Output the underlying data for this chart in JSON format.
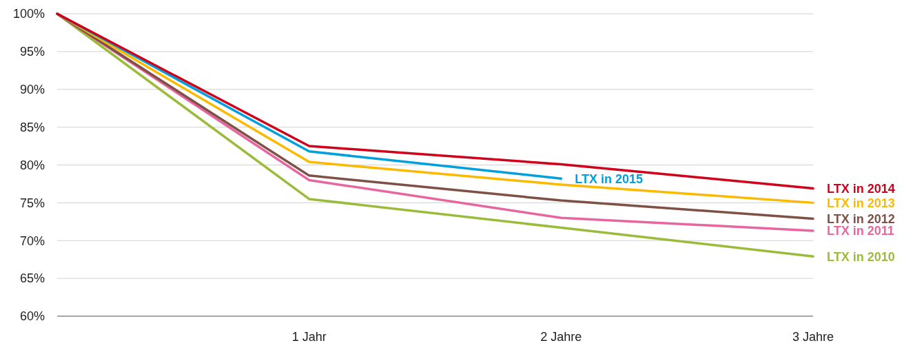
{
  "chart_data": {
    "type": "line",
    "categories": [
      null,
      "1 Jahr",
      "2 Jahre",
      "3 Jahre"
    ],
    "ylim": [
      60,
      100
    ],
    "yticks": [
      {
        "value": 60,
        "label": "60%"
      },
      {
        "value": 65,
        "label": "65%"
      },
      {
        "value": 70,
        "label": "70%"
      },
      {
        "value": 75,
        "label": "75%"
      },
      {
        "value": 80,
        "label": "80%"
      },
      {
        "value": 85,
        "label": "85%"
      },
      {
        "value": 90,
        "label": "90%"
      },
      {
        "value": 95,
        "label": "95%"
      },
      {
        "value": 100,
        "label": "100%"
      }
    ],
    "grid": "y",
    "legend": false,
    "marker": "none",
    "line_style": "solid",
    "series": [
      {
        "name": "LTX in 2010",
        "color": "#9bbb3a",
        "values": [
          100,
          75.5,
          71.7,
          67.9
        ]
      },
      {
        "name": "LTX in 2011",
        "color": "#e8669f",
        "values": [
          100,
          78.0,
          73.0,
          71.3
        ]
      },
      {
        "name": "LTX in 2012",
        "color": "#7f5045",
        "values": [
          100,
          78.6,
          75.3,
          72.9
        ]
      },
      {
        "name": "LTX in 2013",
        "color": "#fbb900",
        "values": [
          100,
          80.4,
          77.4,
          75.0
        ]
      },
      {
        "name": "LTX in 2015",
        "color": "#00a0dc",
        "values": [
          100,
          81.8,
          78.2,
          null
        ]
      },
      {
        "name": "LTX in 2014",
        "color": "#d0021b",
        "values": [
          100,
          82.5,
          80.1,
          76.9
        ]
      }
    ]
  }
}
